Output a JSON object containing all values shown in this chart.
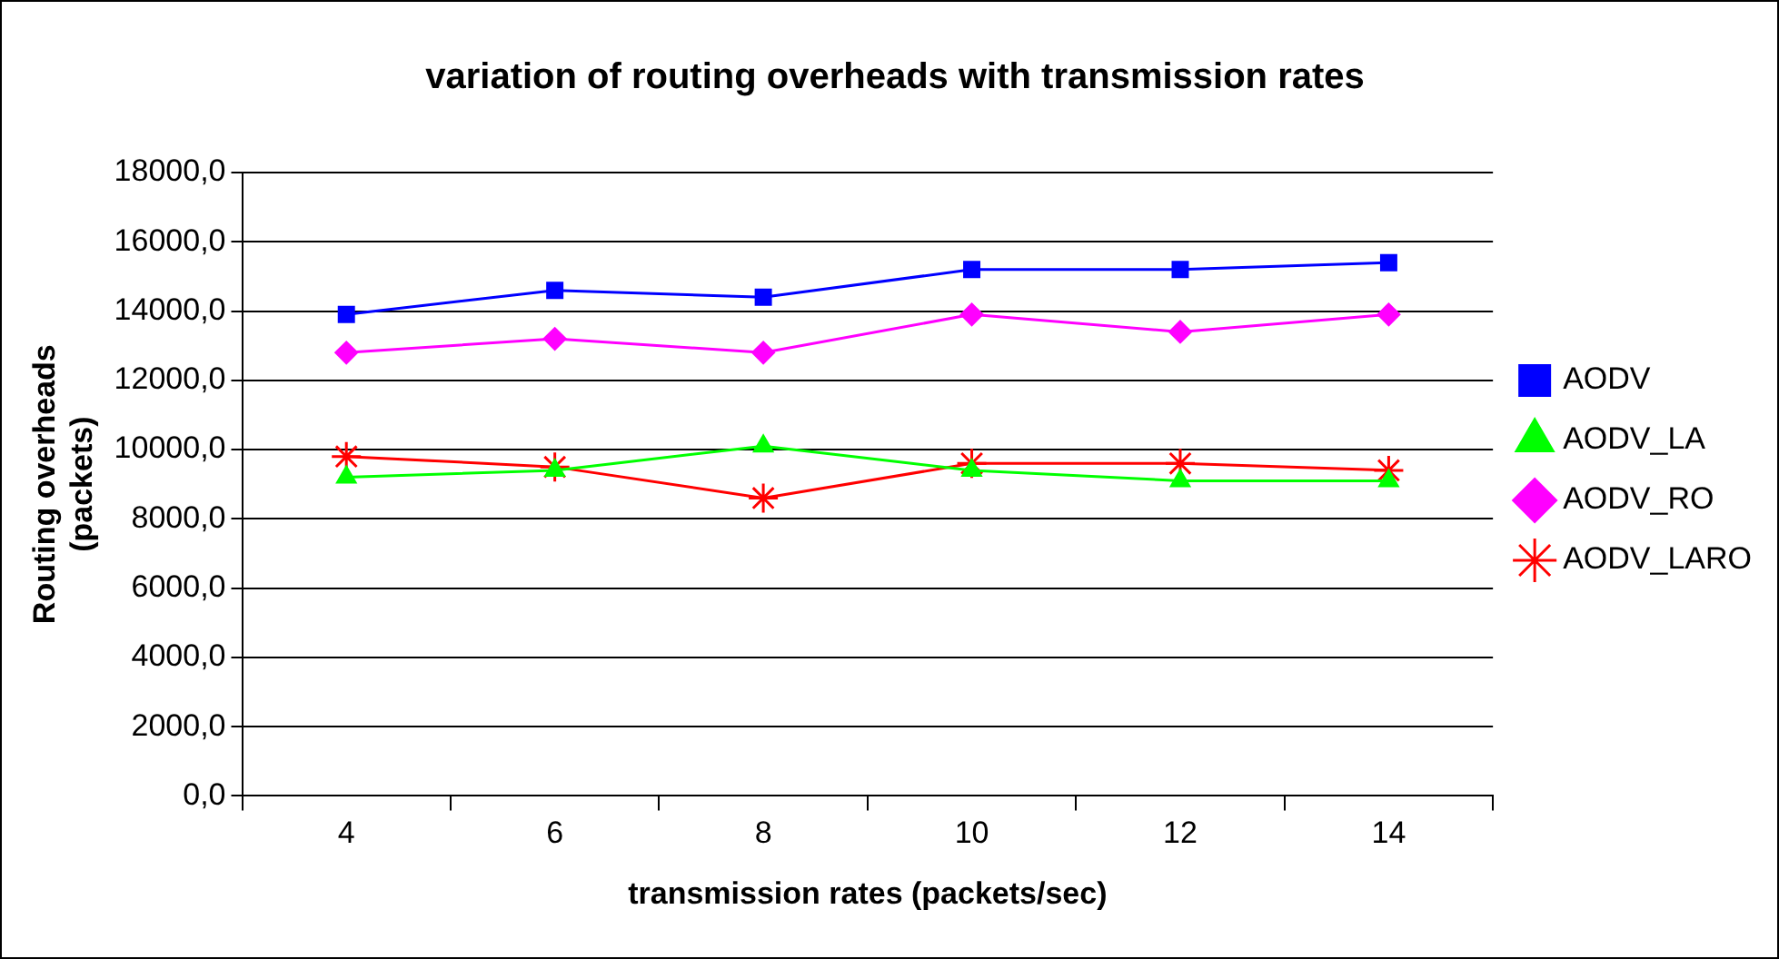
{
  "chart_data": {
    "type": "line",
    "title": "variation of routing overheads with transmission rates",
    "xlabel": "transmission rates (packets/sec)",
    "ylabel": "Routing overheads (packets)",
    "categories": [
      "4",
      "6",
      "8",
      "10",
      "12",
      "14"
    ],
    "series": [
      {
        "name": "AODV",
        "color": "#0000ff",
        "marker": "square",
        "values": [
          13900,
          14600,
          14400,
          15200,
          15200,
          15400
        ]
      },
      {
        "name": "AODV_LA",
        "color": "#00ff00",
        "marker": "triangle",
        "values": [
          9200,
          9400,
          10100,
          9400,
          9100,
          9100
        ]
      },
      {
        "name": "AODV_RO",
        "color": "#ff00ff",
        "marker": "diamond",
        "values": [
          12800,
          13200,
          12800,
          13900,
          13400,
          13900
        ]
      },
      {
        "name": "AODV_LARO",
        "color": "#ff0000",
        "marker": "cross",
        "values": [
          9800,
          9500,
          8600,
          9600,
          9600,
          9400
        ]
      }
    ],
    "ylim": [
      0,
      18000
    ],
    "yticks": [
      {
        "value": 0,
        "label": "0,0"
      },
      {
        "value": 2000,
        "label": "2000,0"
      },
      {
        "value": 4000,
        "label": "4000,0"
      },
      {
        "value": 6000,
        "label": "6000,0"
      },
      {
        "value": 8000,
        "label": "8000,0"
      },
      {
        "value": 10000,
        "label": "10000,0"
      },
      {
        "value": 12000,
        "label": "12000,0"
      },
      {
        "value": 14000,
        "label": "14000,0"
      },
      {
        "value": 16000,
        "label": "16000,0"
      },
      {
        "value": 18000,
        "label": "18000,0"
      }
    ],
    "grid": "y",
    "legend": "right",
    "line_style": "solid"
  }
}
